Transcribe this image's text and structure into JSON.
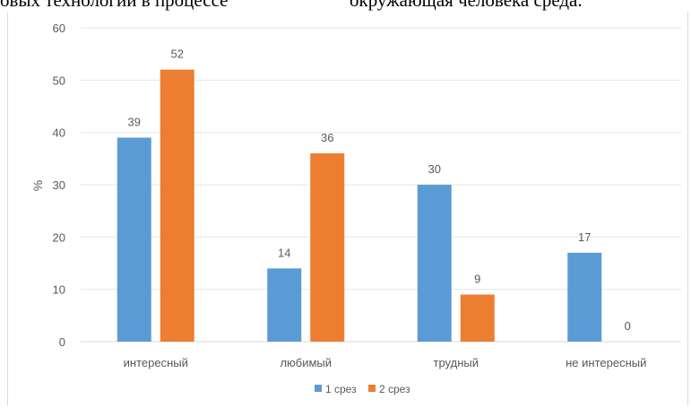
{
  "header_text": {
    "left_fragment": "овых технологий в процессе",
    "right_fragment": "окружающая человека среда."
  },
  "chart_data": {
    "type": "bar",
    "title": "",
    "xlabel": "",
    "ylabel": "%",
    "ylim": [
      0,
      60
    ],
    "yticks": [
      0,
      10,
      20,
      30,
      40,
      50,
      60
    ],
    "grid": true,
    "legend_position": "bottom",
    "categories": [
      "интересный",
      "любимый",
      "трудный",
      "не интересный"
    ],
    "series": [
      {
        "name": "1 срез",
        "color": "#5b9bd5",
        "values": [
          39,
          14,
          30,
          17
        ]
      },
      {
        "name": "2 срез",
        "color": "#ed7d31",
        "values": [
          52,
          36,
          9,
          0
        ]
      }
    ]
  }
}
